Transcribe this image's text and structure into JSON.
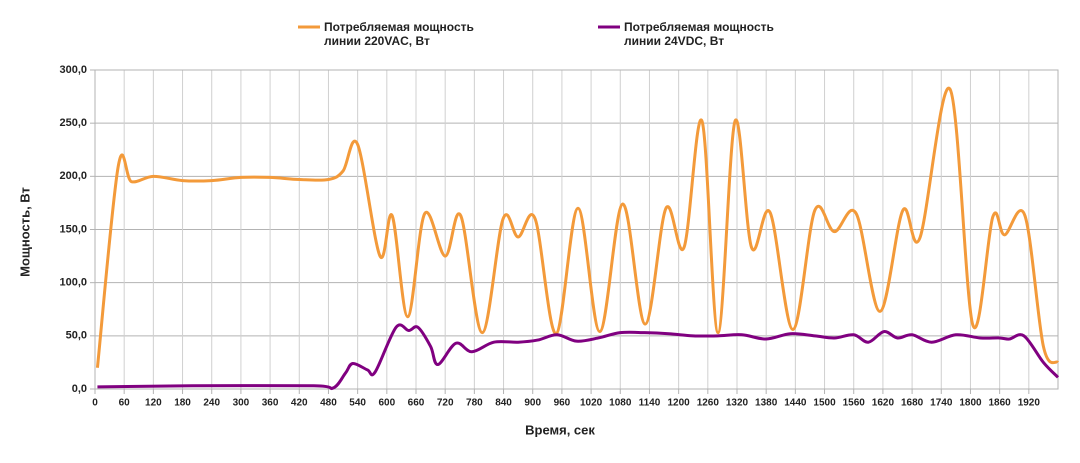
{
  "chart_data": {
    "type": "line",
    "xlabel": "Время, сек",
    "ylabel": "Мощность, Вт",
    "xlim": [
      0,
      1980
    ],
    "ylim": [
      0,
      300
    ],
    "xticks": [
      0,
      60,
      120,
      180,
      240,
      300,
      360,
      420,
      480,
      540,
      600,
      660,
      720,
      780,
      840,
      900,
      960,
      1020,
      1080,
      1140,
      1200,
      1260,
      1320,
      1380,
      1440,
      1500,
      1560,
      1620,
      1680,
      1740,
      1800,
      1860,
      1920
    ],
    "yticks": [
      {
        "value": 0,
        "label": "0,0"
      },
      {
        "value": 50,
        "label": "50,0"
      },
      {
        "value": 100,
        "label": "100,0"
      },
      {
        "value": 150,
        "label": "150,0"
      },
      {
        "value": 200,
        "label": "200,0"
      },
      {
        "value": 250,
        "label": "250,0"
      },
      {
        "value": 300,
        "label": "300,0"
      }
    ],
    "grid": true,
    "series": [
      {
        "name": "Потребляемая мощность линии 220VAC, Вт",
        "color": "#f39a3a",
        "x": [
          5,
          48,
          75,
          120,
          180,
          240,
          300,
          360,
          420,
          480,
          510,
          540,
          586,
          611,
          643,
          678,
          720,
          752,
          796,
          839,
          870,
          905,
          948,
          993,
          1038,
          1085,
          1131,
          1174,
          1211,
          1248,
          1281,
          1316,
          1350,
          1388,
          1435,
          1480,
          1520,
          1565,
          1614,
          1661,
          1696,
          1758,
          1805,
          1846,
          1870,
          1912,
          1950,
          1980
        ],
        "values": [
          20,
          210,
          195,
          200,
          196,
          196,
          199,
          199,
          197,
          197,
          205,
          230,
          125,
          163,
          68,
          165,
          125,
          163,
          53,
          160,
          143,
          160,
          52,
          170,
          54,
          174,
          61,
          170,
          133,
          252,
          53,
          252,
          133,
          166,
          56,
          168,
          148,
          165,
          73,
          168,
          142,
          282,
          60,
          162,
          145,
          163,
          40,
          25
        ]
      },
      {
        "name": "Потребляемая мощность линии 24VDC, Вт",
        "color": "#800080",
        "x": [
          5,
          200,
          450,
          490,
          515,
          530,
          560,
          576,
          619,
          645,
          664,
          690,
          705,
          742,
          775,
          820,
          870,
          910,
          950,
          990,
          1035,
          1080,
          1130,
          1180,
          1230,
          1280,
          1330,
          1380,
          1430,
          1480,
          1520,
          1560,
          1590,
          1622,
          1650,
          1680,
          1720,
          1770,
          1820,
          1860,
          1880,
          1910,
          1950,
          1980
        ],
        "values": [
          2,
          3,
          3,
          1,
          15,
          24,
          18,
          16,
          58,
          55,
          58,
          40,
          23,
          43,
          35,
          44,
          44,
          46,
          51,
          45,
          48,
          53,
          53,
          52,
          50,
          50,
          51,
          47,
          52,
          50,
          48,
          51,
          44,
          54,
          48,
          51,
          44,
          51,
          48,
          48,
          47,
          50,
          25,
          11
        ]
      }
    ]
  }
}
